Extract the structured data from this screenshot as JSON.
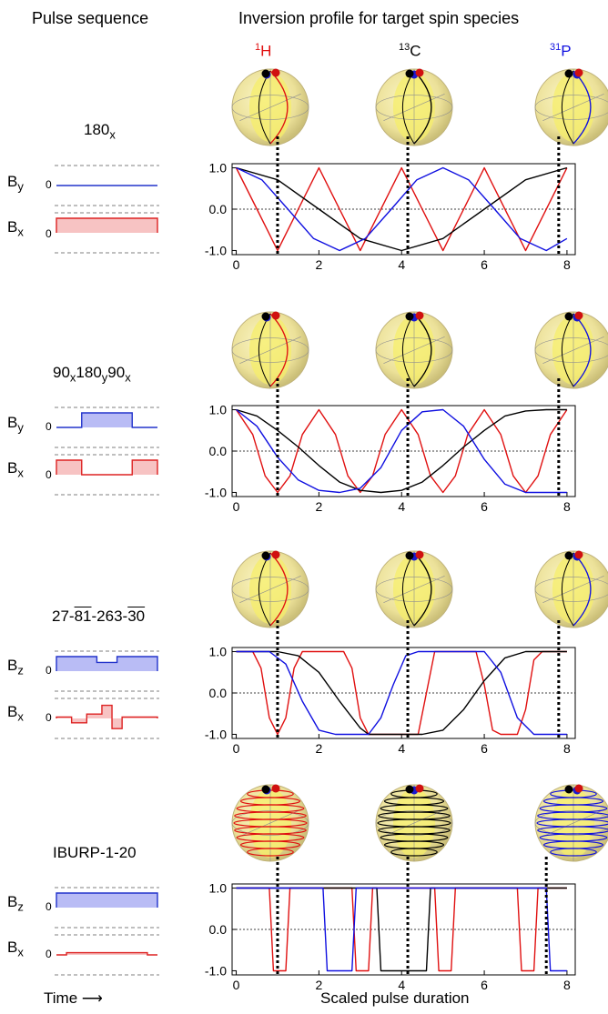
{
  "headers": {
    "left": "Pulse sequence",
    "right": "Inversion profile for target spin species"
  },
  "species": [
    {
      "sup": "1",
      "name": "H",
      "color": "#e01010"
    },
    {
      "sup": "13",
      "name": "C",
      "color": "#000000"
    },
    {
      "sup": "31",
      "name": "P",
      "color": "#1010e0"
    }
  ],
  "footer": {
    "time_label": "Time",
    "xlabel": "Scaled pulse duration"
  },
  "axis": {
    "xticks": [
      "0",
      "2",
      "4",
      "6",
      "8"
    ],
    "yticks": [
      "1.0",
      "0.0",
      "-1.0"
    ],
    "xlim": [
      -0.1,
      8.2
    ],
    "ylim": [
      -1.1,
      1.1
    ],
    "marker_x": [
      1.0,
      4.15,
      7.8
    ],
    "marker_x_last_panel": [
      1.0,
      4.15,
      7.5
    ]
  },
  "panels": [
    {
      "sequence": {
        "parts": [
          {
            "t": "180",
            "sub": "x"
          }
        ]
      },
      "upper_channel": {
        "name": "B",
        "sub": "y",
        "zero": "0"
      },
      "lower_channel": {
        "name": "B",
        "sub": "x",
        "zero": "0"
      }
    },
    {
      "sequence": {
        "parts": [
          {
            "t": "90",
            "sub": "x"
          },
          {
            "t": "180",
            "sub": "y"
          },
          {
            "t": "90",
            "sub": "x"
          }
        ]
      },
      "upper_channel": {
        "name": "B",
        "sub": "y",
        "zero": "0"
      },
      "lower_channel": {
        "name": "B",
        "sub": "x",
        "zero": "0"
      }
    },
    {
      "sequence": {
        "parts": [
          {
            "t": "27-"
          },
          {
            "t": "81",
            "overline": true
          },
          {
            "t": "-263-"
          },
          {
            "t": "30",
            "overline": true
          }
        ]
      },
      "upper_channel": {
        "name": "B",
        "sub": "z",
        "zero": "0"
      },
      "lower_channel": {
        "name": "B",
        "sub": "x",
        "zero": "0"
      }
    },
    {
      "sequence": {
        "parts": [
          {
            "t": "IBURP-1-20"
          }
        ]
      },
      "upper_channel": {
        "name": "B",
        "sub": "z",
        "zero": "0"
      },
      "lower_channel": {
        "name": "B",
        "sub": "x",
        "zero": "0"
      }
    }
  ],
  "chart_data": [
    {
      "type": "line",
      "title": "180x",
      "xlim": [
        0,
        8
      ],
      "ylim": [
        -1,
        1
      ],
      "series": [
        {
          "name": "1H",
          "color": "#e01010",
          "x": [
            0,
            0.5,
            1,
            1.5,
            2,
            2.5,
            3,
            3.5,
            4,
            4.5,
            5,
            5.5,
            6,
            6.5,
            7,
            7.5,
            8
          ],
          "y": [
            1,
            0,
            -1,
            0,
            1,
            0,
            -1,
            0,
            1,
            0,
            -1,
            0,
            1,
            0,
            -1,
            0,
            1
          ]
        },
        {
          "name": "13C",
          "color": "#000000",
          "x": [
            0,
            1,
            2,
            3,
            4,
            5,
            6,
            7,
            8
          ],
          "y": [
            1,
            0.71,
            0,
            -0.71,
            -1,
            -0.71,
            0,
            0.71,
            1
          ]
        },
        {
          "name": "31P",
          "color": "#1010e0",
          "x": [
            0,
            0.62,
            1.25,
            1.87,
            2.5,
            3.12,
            3.75,
            4.37,
            5,
            5.62,
            6.25,
            6.87,
            7.5,
            8
          ],
          "y": [
            1,
            0.71,
            0,
            -0.71,
            -1,
            -0.71,
            0,
            0.71,
            1,
            0.71,
            0,
            -0.71,
            -1,
            -0.71
          ]
        }
      ]
    },
    {
      "type": "line",
      "title": "90x180y90x",
      "xlim": [
        0,
        8
      ],
      "ylim": [
        -1,
        1
      ],
      "series": [
        {
          "name": "1H",
          "color": "#e01010",
          "x": [
            0,
            0.4,
            0.7,
            1,
            1.3,
            1.6,
            2,
            2.4,
            2.7,
            3,
            3.3,
            3.6,
            4,
            4.4,
            4.7,
            5,
            5.3,
            5.6,
            6,
            6.4,
            6.7,
            7,
            7.3,
            7.6,
            8
          ],
          "y": [
            1,
            0.4,
            -0.6,
            -1,
            -0.6,
            0.4,
            1,
            0.4,
            -0.6,
            -1,
            -0.6,
            0.4,
            1,
            0.4,
            -0.6,
            -1,
            -0.6,
            0.4,
            1,
            0.4,
            -0.6,
            -1,
            -0.6,
            0.4,
            1
          ]
        },
        {
          "name": "13C",
          "color": "#000000",
          "x": [
            0,
            0.5,
            1,
            1.5,
            2,
            2.5,
            3,
            3.5,
            4,
            4.5,
            5,
            5.5,
            6,
            6.5,
            7,
            7.5,
            8
          ],
          "y": [
            1,
            0.85,
            0.5,
            0.1,
            -0.35,
            -0.75,
            -0.95,
            -1,
            -0.95,
            -0.75,
            -0.35,
            0.1,
            0.5,
            0.85,
            0.97,
            1,
            1
          ]
        },
        {
          "name": "31P",
          "color": "#1010e0",
          "x": [
            0,
            0.5,
            1,
            1.5,
            2,
            2.5,
            3,
            3.5,
            4,
            4.5,
            5,
            5.5,
            6,
            6.5,
            7,
            7.5,
            8
          ],
          "y": [
            1,
            0.6,
            -0.15,
            -0.7,
            -0.95,
            -1,
            -0.9,
            -0.4,
            0.5,
            0.95,
            1,
            0.6,
            -0.2,
            -0.8,
            -1,
            -1,
            -1
          ]
        }
      ]
    },
    {
      "type": "line",
      "title": "27-81-263-30",
      "xlim": [
        0,
        8
      ],
      "ylim": [
        -1,
        1
      ],
      "series": [
        {
          "name": "1H",
          "color": "#e01010",
          "x": [
            0,
            0.4,
            0.6,
            0.8,
            1,
            1.2,
            1.4,
            1.6,
            2.6,
            2.8,
            3,
            3.2,
            3.4,
            4,
            4.4,
            4.6,
            4.8,
            5,
            5.8,
            6,
            6.2,
            6.4,
            6.8,
            7,
            7.2,
            7.4,
            8
          ],
          "y": [
            1,
            1,
            0.6,
            -0.6,
            -1,
            -0.6,
            0.6,
            1,
            1,
            0.6,
            -0.6,
            -1,
            -1,
            -1,
            -1,
            0,
            1,
            1,
            1,
            0.2,
            -0.9,
            -1,
            -1,
            -0.4,
            0.8,
            1,
            1
          ]
        },
        {
          "name": "13C",
          "color": "#000000",
          "x": [
            0,
            1,
            1.5,
            2,
            2.5,
            3,
            3.2,
            3.5,
            4,
            4.5,
            5,
            5.5,
            6,
            6.5,
            7,
            7.5,
            8
          ],
          "y": [
            1,
            1,
            0.9,
            0.5,
            -0.2,
            -0.85,
            -1,
            -1,
            -1,
            -1,
            -0.9,
            -0.4,
            0.3,
            0.85,
            1,
            1,
            1
          ]
        },
        {
          "name": "31P",
          "color": "#1010e0",
          "x": [
            0,
            0.8,
            1.2,
            1.6,
            2,
            2.4,
            2.8,
            3.2,
            3.5,
            3.8,
            4.1,
            4.4,
            6,
            6.4,
            6.8,
            7.2,
            7.6,
            8
          ],
          "y": [
            1,
            1,
            0.7,
            -0.2,
            -0.9,
            -1,
            -1,
            -1,
            -0.6,
            0.2,
            0.9,
            1,
            1,
            0.5,
            -0.6,
            -1,
            -1,
            -1
          ]
        }
      ]
    },
    {
      "type": "line",
      "title": "IBURP-1-20",
      "xlim": [
        0,
        8
      ],
      "ylim": [
        -1,
        1
      ],
      "series": [
        {
          "name": "1H",
          "color": "#e01010",
          "x": [
            0,
            0.8,
            0.9,
            1.2,
            1.3,
            2.8,
            2.9,
            3.2,
            3.3,
            4.8,
            4.9,
            5.2,
            5.3,
            6.8,
            6.9,
            7.2,
            7.3,
            8
          ],
          "y": [
            1,
            1,
            -1,
            -1,
            1,
            1,
            -1,
            -1,
            1,
            1,
            -1,
            -1,
            1,
            1,
            -1,
            -1,
            1,
            1
          ]
        },
        {
          "name": "13C",
          "color": "#000000",
          "x": [
            0,
            3.4,
            3.5,
            4.6,
            4.7,
            8
          ],
          "y": [
            1,
            1,
            -1,
            -1,
            1,
            1
          ]
        },
        {
          "name": "31P",
          "color": "#1010e0",
          "x": [
            0,
            2.1,
            2.2,
            2.8,
            2.9,
            7.5,
            7.6,
            8
          ],
          "y": [
            1,
            1,
            -1,
            -1,
            1,
            1,
            -1,
            -1
          ]
        }
      ]
    }
  ],
  "pulse_data": [
    {
      "upper": [
        [
          0,
          1,
          0
        ]
      ],
      "lower": [
        [
          0,
          1,
          1
        ]
      ]
    },
    {
      "upper": [
        [
          0,
          0.25,
          0
        ],
        [
          0.25,
          0.75,
          1
        ],
        [
          0.75,
          1,
          0
        ]
      ],
      "lower": [
        [
          0,
          0.25,
          1
        ],
        [
          0.25,
          0.75,
          0
        ],
        [
          0.75,
          1,
          1
        ]
      ]
    },
    {
      "upper": [
        [
          0,
          0.4,
          1
        ],
        [
          0.4,
          0.6,
          0.6
        ],
        [
          0.6,
          1,
          1
        ]
      ],
      "lower": [
        [
          0,
          0.15,
          0.1
        ],
        [
          0.15,
          0.3,
          -0.3
        ],
        [
          0.3,
          0.45,
          0.3
        ],
        [
          0.45,
          0.55,
          0.9
        ],
        [
          0.55,
          0.65,
          -0.7
        ],
        [
          0.65,
          0.8,
          0.1
        ],
        [
          0.8,
          1,
          0.1
        ]
      ]
    },
    {
      "upper": [
        [
          0,
          1,
          1
        ]
      ],
      "lower": [
        [
          0,
          0.1,
          0
        ],
        [
          0.1,
          0.9,
          0.15
        ],
        [
          0.9,
          1,
          0
        ]
      ]
    }
  ]
}
